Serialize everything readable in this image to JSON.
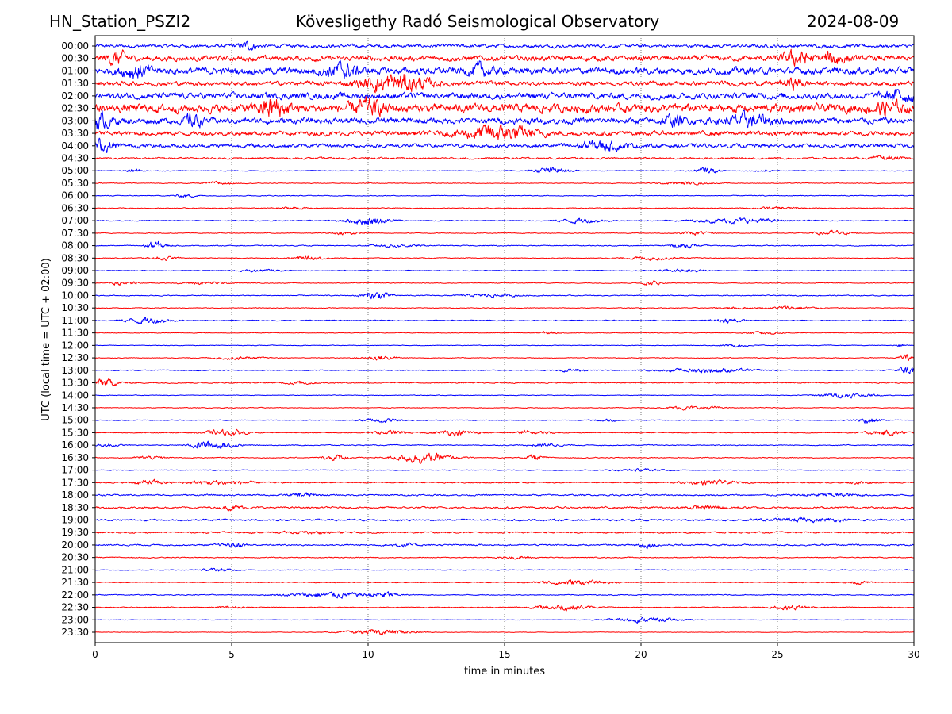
{
  "header": {
    "station": "HN_Station_PSZI2",
    "observatory": "Kövesligethy Radó Seismological Observatory",
    "date": "2024-08-09"
  },
  "chart_data": {
    "type": "line",
    "title": "Kövesligethy Radó Seismological Observatory",
    "xlabel": "time in minutes",
    "ylabel": "UTC (local time = UTC + 02:00)",
    "xlim": [
      0,
      30
    ],
    "xticks": [
      "0",
      "5",
      "10",
      "15",
      "20",
      "25",
      "30"
    ],
    "xtick_values": [
      0,
      5,
      10,
      15,
      20,
      25,
      30
    ],
    "grid": "vertical dotted at each x tick",
    "colors": {
      "even": "#0000ff",
      "odd": "#ff0000",
      "grid": "#555555"
    },
    "rows": [
      {
        "label": "00:00",
        "noise": 0.22,
        "events": [
          [
            5.6,
            0.5,
            0.3
          ]
        ]
      },
      {
        "label": "00:30",
        "noise": 0.35,
        "events": [
          [
            0.8,
            0.8,
            0.4
          ],
          [
            25.7,
            0.9,
            0.5
          ],
          [
            27.1,
            0.8,
            0.4
          ]
        ]
      },
      {
        "label": "01:00",
        "noise": 0.45,
        "events": [
          [
            1.5,
            0.7,
            0.5
          ],
          [
            9.0,
            0.8,
            0.6
          ],
          [
            14.1,
            0.6,
            0.4
          ]
        ]
      },
      {
        "label": "01:30",
        "noise": 0.3,
        "events": [
          [
            11.0,
            1.1,
            1.2
          ],
          [
            25.6,
            0.6,
            0.4
          ]
        ]
      },
      {
        "label": "02:00",
        "noise": 0.4,
        "events": [
          [
            29.5,
            0.6,
            0.6
          ]
        ]
      },
      {
        "label": "02:30",
        "noise": 0.55,
        "events": [
          [
            6.5,
            1.2,
            0.5
          ],
          [
            10.0,
            0.8,
            0.6
          ],
          [
            29.0,
            0.7,
            0.5
          ]
        ]
      },
      {
        "label": "03:00",
        "noise": 0.4,
        "events": [
          [
            0.1,
            0.9,
            0.5
          ],
          [
            3.6,
            0.8,
            0.3
          ],
          [
            21.2,
            0.6,
            0.4
          ],
          [
            24.0,
            0.7,
            0.8
          ]
        ]
      },
      {
        "label": "03:30",
        "noise": 0.3,
        "events": [
          [
            14.8,
            0.9,
            1.3
          ]
        ]
      },
      {
        "label": "04:00",
        "noise": 0.25,
        "events": [
          [
            0.2,
            0.7,
            0.5
          ],
          [
            18.5,
            0.5,
            1.0
          ]
        ]
      },
      {
        "label": "04:30",
        "noise": 0.12,
        "events": [
          [
            29.0,
            0.2,
            0.5
          ]
        ]
      },
      {
        "label": "05:00",
        "noise": 0.05,
        "events": [
          [
            1.4,
            0.25,
            0.3
          ],
          [
            16.7,
            0.45,
            0.6
          ],
          [
            22.4,
            0.4,
            0.4
          ],
          [
            24.5,
            0.15,
            0.3
          ]
        ]
      },
      {
        "label": "05:30",
        "noise": 0.05,
        "events": [
          [
            4.5,
            0.2,
            0.5
          ],
          [
            21.5,
            0.2,
            0.8
          ]
        ]
      },
      {
        "label": "06:00",
        "noise": 0.05,
        "events": [
          [
            3.3,
            0.2,
            0.4
          ]
        ]
      },
      {
        "label": "06:30",
        "noise": 0.05,
        "events": [
          [
            7.2,
            0.15,
            0.6
          ],
          [
            25.0,
            0.15,
            0.8
          ]
        ]
      },
      {
        "label": "07:00",
        "noise": 0.06,
        "events": [
          [
            10.0,
            0.5,
            0.8
          ],
          [
            17.8,
            0.3,
            0.8
          ],
          [
            23.5,
            0.3,
            1.5
          ]
        ]
      },
      {
        "label": "07:30",
        "noise": 0.05,
        "events": [
          [
            9.2,
            0.2,
            0.5
          ],
          [
            27.0,
            0.3,
            0.6
          ],
          [
            22.0,
            0.2,
            0.6
          ]
        ]
      },
      {
        "label": "08:00",
        "noise": 0.06,
        "events": [
          [
            2.2,
            0.5,
            0.4
          ],
          [
            11.0,
            0.2,
            0.8
          ],
          [
            21.5,
            0.3,
            0.5
          ]
        ]
      },
      {
        "label": "08:30",
        "noise": 0.05,
        "events": [
          [
            2.5,
            0.25,
            0.5
          ],
          [
            7.8,
            0.25,
            0.6
          ],
          [
            20.5,
            0.2,
            1.0
          ]
        ]
      },
      {
        "label": "09:00",
        "noise": 0.05,
        "events": [
          [
            6.0,
            0.15,
            0.8
          ],
          [
            21.5,
            0.2,
            0.8
          ]
        ]
      },
      {
        "label": "09:30",
        "noise": 0.05,
        "events": [
          [
            0.8,
            0.4,
            0.2
          ],
          [
            1.4,
            0.3,
            0.2
          ],
          [
            4.0,
            0.2,
            0.8
          ],
          [
            20.4,
            0.35,
            0.3
          ]
        ]
      },
      {
        "label": "10:00",
        "noise": 0.06,
        "events": [
          [
            10.3,
            0.55,
            0.5
          ],
          [
            14.5,
            0.2,
            1.0
          ]
        ]
      },
      {
        "label": "10:30",
        "noise": 0.05,
        "events": [
          [
            25.5,
            0.25,
            0.8
          ],
          [
            23.5,
            0.15,
            0.6
          ]
        ]
      },
      {
        "label": "11:00",
        "noise": 0.06,
        "events": [
          [
            1.9,
            0.4,
            0.8
          ],
          [
            23.2,
            0.3,
            0.5
          ]
        ]
      },
      {
        "label": "11:30",
        "noise": 0.04,
        "events": [
          [
            16.6,
            0.2,
            0.3
          ],
          [
            24.5,
            0.2,
            0.6
          ]
        ]
      },
      {
        "label": "12:00",
        "noise": 0.04,
        "events": [
          [
            23.5,
            0.15,
            0.6
          ],
          [
            29.5,
            0.2,
            0.2
          ]
        ]
      },
      {
        "label": "12:30",
        "noise": 0.05,
        "events": [
          [
            5.2,
            0.2,
            0.8
          ],
          [
            10.4,
            0.3,
            0.6
          ],
          [
            29.8,
            0.4,
            0.3
          ]
        ]
      },
      {
        "label": "13:00",
        "noise": 0.06,
        "events": [
          [
            22.5,
            0.3,
            1.5
          ],
          [
            17.5,
            0.2,
            0.5
          ],
          [
            29.8,
            0.6,
            0.4
          ]
        ]
      },
      {
        "label": "13:30",
        "noise": 0.07,
        "events": [
          [
            0.3,
            0.5,
            0.6
          ],
          [
            7.5,
            0.2,
            0.5
          ]
        ]
      },
      {
        "label": "14:00",
        "noise": 0.04,
        "events": [
          [
            27.5,
            0.3,
            1.0
          ]
        ]
      },
      {
        "label": "14:30",
        "noise": 0.05,
        "events": [
          [
            21.5,
            0.25,
            0.5
          ],
          [
            22.5,
            0.2,
            0.4
          ]
        ]
      },
      {
        "label": "15:00",
        "noise": 0.05,
        "events": [
          [
            10.5,
            0.25,
            0.8
          ],
          [
            28.3,
            0.35,
            0.5
          ],
          [
            18.7,
            0.2,
            0.4
          ]
        ]
      },
      {
        "label": "15:30",
        "noise": 0.05,
        "events": [
          [
            4.5,
            0.3,
            0.6
          ],
          [
            5.2,
            0.3,
            0.4
          ],
          [
            10.8,
            0.3,
            0.6
          ],
          [
            13.2,
            0.35,
            0.8
          ],
          [
            15.7,
            0.35,
            0.2
          ],
          [
            16.4,
            0.2,
            0.4
          ],
          [
            29.0,
            0.3,
            0.8
          ]
        ]
      },
      {
        "label": "16:00",
        "noise": 0.06,
        "events": [
          [
            0.5,
            0.2,
            0.4
          ],
          [
            4.0,
            0.5,
            0.5
          ],
          [
            4.8,
            0.3,
            0.5
          ],
          [
            16.5,
            0.2,
            0.6
          ]
        ]
      },
      {
        "label": "16:30",
        "noise": 0.06,
        "events": [
          [
            8.8,
            0.4,
            0.4
          ],
          [
            12.0,
            0.6,
            1.0
          ],
          [
            16.1,
            0.35,
            0.3
          ],
          [
            2.0,
            0.2,
            0.5
          ]
        ]
      },
      {
        "label": "17:00",
        "noise": 0.05,
        "events": [
          [
            20.0,
            0.15,
            1.0
          ]
        ]
      },
      {
        "label": "17:30",
        "noise": 0.07,
        "events": [
          [
            2.0,
            0.3,
            0.6
          ],
          [
            4.5,
            0.3,
            1.2
          ],
          [
            22.5,
            0.3,
            1.0
          ],
          [
            28.0,
            0.2,
            0.4
          ]
        ]
      },
      {
        "label": "18:00",
        "noise": 0.1,
        "events": [
          [
            7.6,
            0.3,
            0.4
          ],
          [
            27.0,
            0.2,
            1.0
          ]
        ]
      },
      {
        "label": "18:30",
        "noise": 0.12,
        "events": [
          [
            5.1,
            0.3,
            0.4
          ],
          [
            22.5,
            0.2,
            1.0
          ]
        ]
      },
      {
        "label": "19:00",
        "noise": 0.12,
        "events": [
          [
            26.0,
            0.2,
            1.5
          ]
        ]
      },
      {
        "label": "19:30",
        "noise": 0.1,
        "events": [
          [
            8.0,
            0.15,
            1.0
          ]
        ]
      },
      {
        "label": "20:00",
        "noise": 0.1,
        "events": [
          [
            5.1,
            0.35,
            0.4
          ],
          [
            11.3,
            0.2,
            0.5
          ],
          [
            20.2,
            0.3,
            0.4
          ]
        ]
      },
      {
        "label": "20:30",
        "noise": 0.06,
        "events": [
          [
            15.5,
            0.15,
            0.6
          ]
        ]
      },
      {
        "label": "21:00",
        "noise": 0.05,
        "events": [
          [
            4.5,
            0.2,
            0.6
          ]
        ]
      },
      {
        "label": "21:30",
        "noise": 0.05,
        "events": [
          [
            17.5,
            0.35,
            1.2
          ],
          [
            28.0,
            0.2,
            0.4
          ]
        ]
      },
      {
        "label": "22:00",
        "noise": 0.06,
        "events": [
          [
            8.6,
            0.35,
            1.5
          ],
          [
            10.6,
            0.4,
            0.4
          ]
        ]
      },
      {
        "label": "22:30",
        "noise": 0.05,
        "events": [
          [
            17.1,
            0.4,
            1.0
          ],
          [
            25.5,
            0.3,
            0.8
          ],
          [
            5.0,
            0.15,
            0.5
          ]
        ]
      },
      {
        "label": "23:00",
        "noise": 0.03,
        "events": [
          [
            20.2,
            0.3,
            1.2
          ]
        ]
      },
      {
        "label": "23:30",
        "noise": 0.03,
        "events": [
          [
            10.5,
            0.35,
            1.2
          ]
        ]
      }
    ]
  }
}
